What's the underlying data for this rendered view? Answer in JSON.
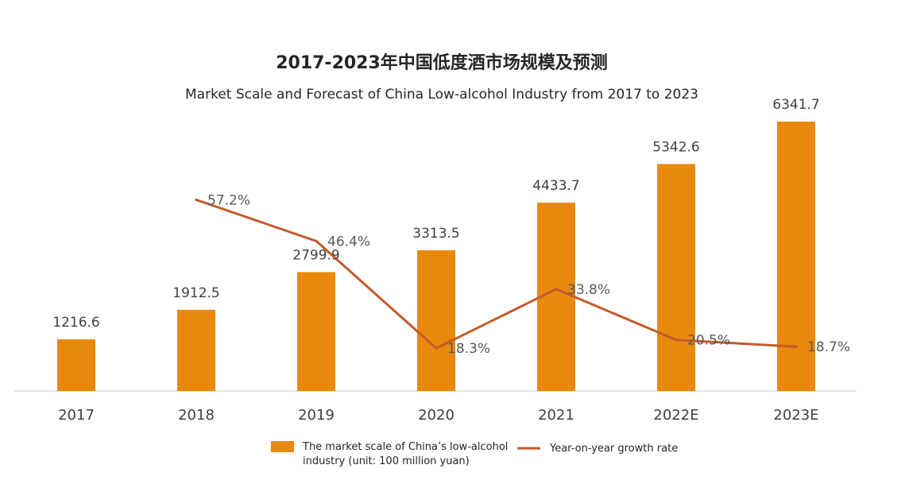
{
  "chart_data": {
    "type": "bar",
    "title": "2017-2023年中国低度酒市场规模及预测",
    "subtitle": "Market Scale and Forecast of China Low-alcohol Industry from 2017 to 2023",
    "categories": [
      "2017",
      "2018",
      "2019",
      "2020",
      "2021",
      "2022E",
      "2023E"
    ],
    "series": [
      {
        "name": "The market scale of China’s low-alcohol industry (unit: 100 million yuan)",
        "legend_lines": [
          "The market scale of China’s low-alcohol",
          "industry (unit: 100 million yuan)"
        ],
        "type": "bar",
        "color": "#E8890C",
        "values": [
          1216.6,
          1912.5,
          2799.9,
          3313.5,
          4433.7,
          5342.6,
          6341.7
        ],
        "labels": [
          "1216.6",
          "1912.5",
          "2799.9",
          "3313.5",
          "4433.7",
          "5342.6",
          "6341.7"
        ]
      },
      {
        "name": "Year-on-year growth rate",
        "type": "line",
        "color": "#C55A2B",
        "values": [
          null,
          57.2,
          46.4,
          18.3,
          33.8,
          20.5,
          18.7
        ],
        "labels": [
          "",
          "57.2%",
          "46.4%",
          "18.3%",
          "33.8%",
          "20.5%",
          "18.7%"
        ]
      }
    ],
    "ylim": [
      0,
      6341.7
    ],
    "y2lim": [
      0,
      100
    ],
    "grid": false,
    "legend": "bottom-center"
  }
}
